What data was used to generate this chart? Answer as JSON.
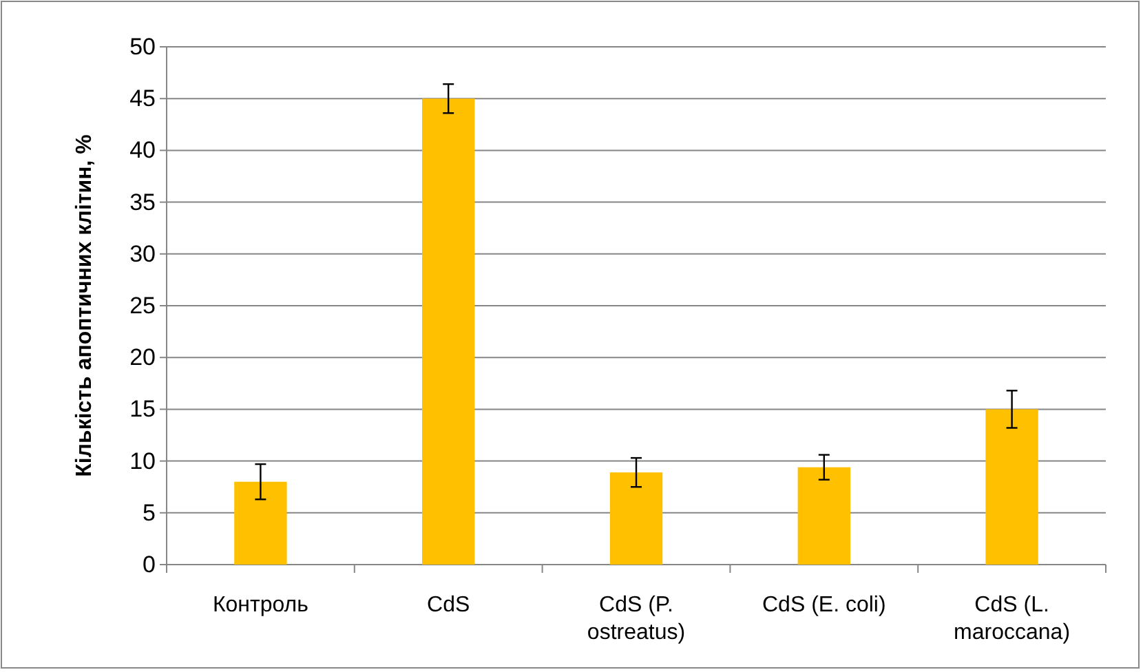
{
  "chart_data": {
    "type": "bar",
    "ylabel": "Кількість апоптичних клітин, %",
    "categories": [
      "Контроль",
      "CdS",
      "CdS (P. ostreatus)",
      "CdS (E. coli)",
      "CdS (L. maroccana)"
    ],
    "values": [
      8,
      45,
      8.9,
      9.4,
      15
    ],
    "errors": [
      1.7,
      1.4,
      1.4,
      1.2,
      1.8
    ],
    "color": "#ffc000",
    "ylim": [
      0,
      50
    ],
    "yticks": [
      0,
      5,
      10,
      15,
      20,
      25,
      30,
      35,
      40,
      45,
      50
    ],
    "grid": "y"
  }
}
